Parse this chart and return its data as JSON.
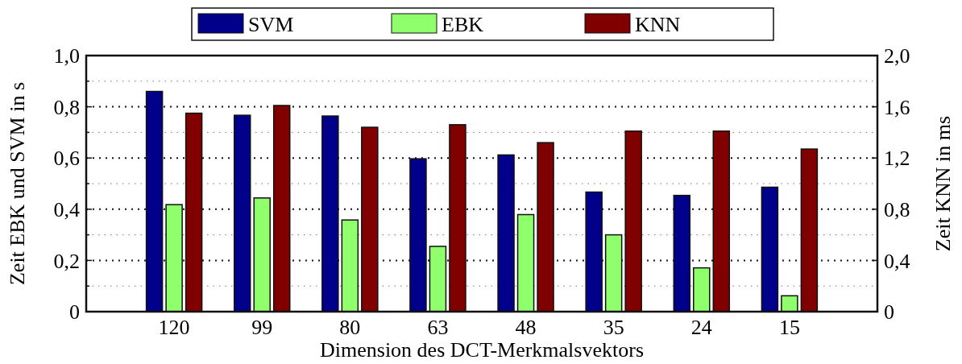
{
  "chart_data": {
    "type": "bar",
    "xlabel": "Dimension des DCT-Merkmalsvektors",
    "ylabel": "Zeit EBK und SVM in s",
    "y2label": "Zeit KNN in ms",
    "categories": [
      "120",
      "99",
      "80",
      "63",
      "48",
      "35",
      "24",
      "15"
    ],
    "series": [
      {
        "name": "SVM",
        "color": "#00008b",
        "values": [
          0.86,
          0.767,
          0.764,
          0.597,
          0.612,
          0.467,
          0.454,
          0.486
        ]
      },
      {
        "name": "EBK",
        "color": "#90ff6c",
        "values": [
          0.418,
          0.444,
          0.358,
          0.255,
          0.379,
          0.3,
          0.171,
          0.062
        ]
      },
      {
        "name": "KNN",
        "color": "#800000",
        "axis": "y2",
        "values": [
          1.55,
          1.61,
          1.44,
          1.46,
          1.32,
          1.41,
          1.41,
          1.27
        ]
      }
    ],
    "ylim": [
      0,
      1
    ],
    "yticks": [
      {
        "value": 0,
        "label": "0"
      },
      {
        "value": 0.1,
        "label": null
      },
      {
        "value": 0.2,
        "label": "0,2"
      },
      {
        "value": 0.3,
        "label": null
      },
      {
        "value": 0.4,
        "label": "0,4"
      },
      {
        "value": 0.5,
        "label": null
      },
      {
        "value": 0.6,
        "label": "0,6"
      },
      {
        "value": 0.7,
        "label": null
      },
      {
        "value": 0.8,
        "label": "0,8"
      },
      {
        "value": 0.9,
        "label": null
      },
      {
        "value": 1,
        "label": "1,0"
      }
    ],
    "y2lim": [
      0,
      2
    ],
    "y2ticks": [
      {
        "value": 0,
        "label": "0"
      },
      {
        "value": 0.4,
        "label": "0,4"
      },
      {
        "value": 0.8,
        "label": "0,8"
      },
      {
        "value": 1.2,
        "label": "1,2"
      },
      {
        "value": 1.6,
        "label": "1,6"
      },
      {
        "value": 2,
        "label": "2,0"
      }
    ],
    "grid": true,
    "legend": "top"
  }
}
